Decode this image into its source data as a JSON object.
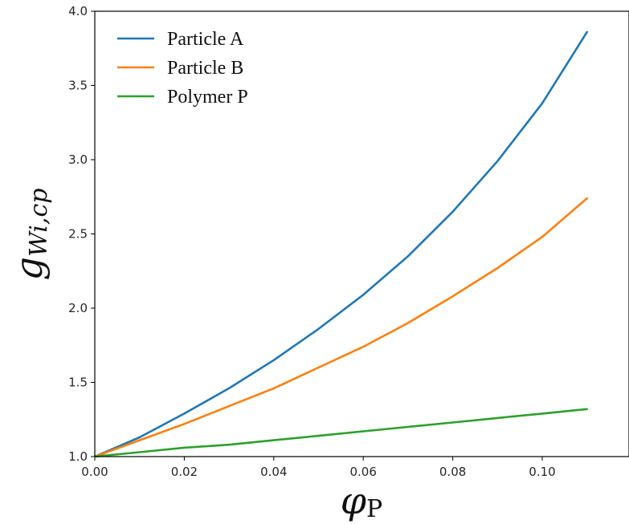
{
  "chart_data": {
    "type": "line",
    "title": "",
    "xlabel": {
      "symbol": "φ",
      "subscript": "P"
    },
    "ylabel": {
      "symbol": "g",
      "subscript": "Wi,cp"
    },
    "xlim": [
      0.0,
      0.11
    ],
    "ylim": [
      1.0,
      4.0
    ],
    "xticks": [
      "0.00",
      "0.02",
      "0.04",
      "0.06",
      "0.08",
      "0.10"
    ],
    "yticks": [
      "1.0",
      "1.5",
      "2.0",
      "2.5",
      "3.0",
      "3.5",
      "4.0"
    ],
    "grid": false,
    "legend_position": "top-left",
    "x": [
      0.0,
      0.01,
      0.02,
      0.03,
      0.04,
      0.05,
      0.06,
      0.07,
      0.08,
      0.09,
      0.1,
      0.11
    ],
    "series": [
      {
        "name": "Particle A",
        "color": "#1f77b4",
        "values": [
          1.0,
          1.13,
          1.29,
          1.46,
          1.65,
          1.86,
          2.09,
          2.35,
          2.65,
          2.99,
          3.38,
          3.86
        ]
      },
      {
        "name": "Particle B",
        "color": "#ff7f0e",
        "values": [
          1.0,
          1.11,
          1.22,
          1.34,
          1.46,
          1.6,
          1.74,
          1.9,
          2.08,
          2.27,
          2.48,
          2.74
        ]
      },
      {
        "name": "Polymer P",
        "color": "#2ca02c",
        "values": [
          1.0,
          1.03,
          1.06,
          1.08,
          1.11,
          1.14,
          1.17,
          1.2,
          1.23,
          1.26,
          1.29,
          1.32
        ]
      }
    ]
  }
}
